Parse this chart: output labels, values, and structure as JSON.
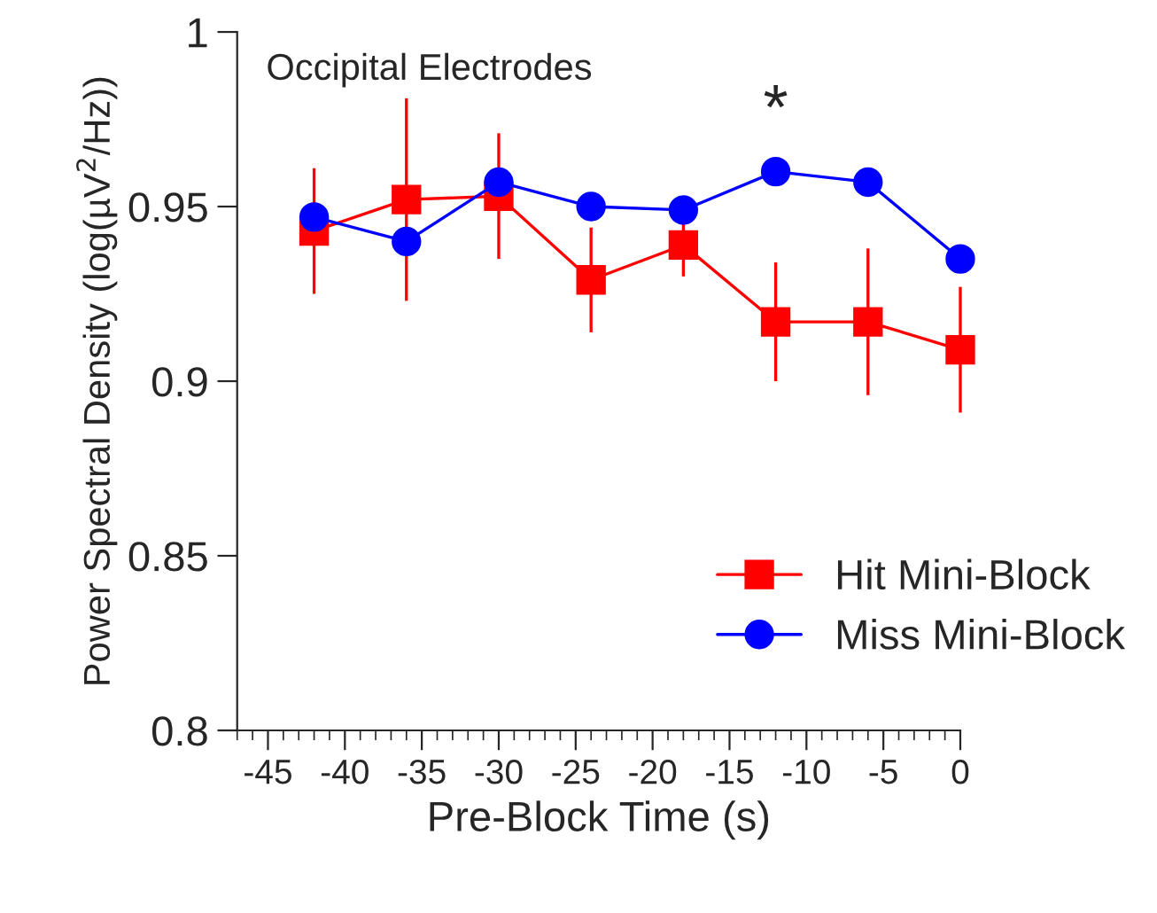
{
  "chart_data": {
    "type": "line",
    "xlabel": "Pre-Block Time (s)",
    "ylabel": "Power Spectral Density (log(µV$^{2}$/Hz))",
    "x": [
      -42,
      -36,
      -30,
      -24,
      -18,
      -12,
      -6,
      0
    ],
    "series": [
      {
        "name": "Hit Mini-Block",
        "color": "#ff0000",
        "marker": "square",
        "values": [
          0.943,
          0.952,
          0.953,
          0.929,
          0.939,
          0.917,
          0.917,
          0.909
        ],
        "errors": [
          0.018,
          0.029,
          0.018,
          0.015,
          0.009,
          0.017,
          0.021,
          0.018
        ]
      },
      {
        "name": "Miss Mini-Block",
        "color": "#0000ff",
        "marker": "circle",
        "values": [
          0.947,
          0.94,
          0.957,
          0.95,
          0.949,
          0.96,
          0.957,
          0.935
        ]
      }
    ],
    "annotations": [
      "Occipital Electrodes",
      {
        "text": "*",
        "x": -12,
        "y": 0.96
      }
    ],
    "xlim": [
      -47,
      0
    ],
    "xticks": [
      -45,
      -40,
      -35,
      -30,
      -25,
      -20,
      -15,
      -10,
      -5,
      0
    ],
    "ylim": [
      0.8,
      1.0
    ],
    "yticks": [
      0.8,
      0.85,
      0.9,
      0.95,
      1
    ],
    "legend": "bottom right",
    "grid": false,
    "line_style": "solid"
  }
}
